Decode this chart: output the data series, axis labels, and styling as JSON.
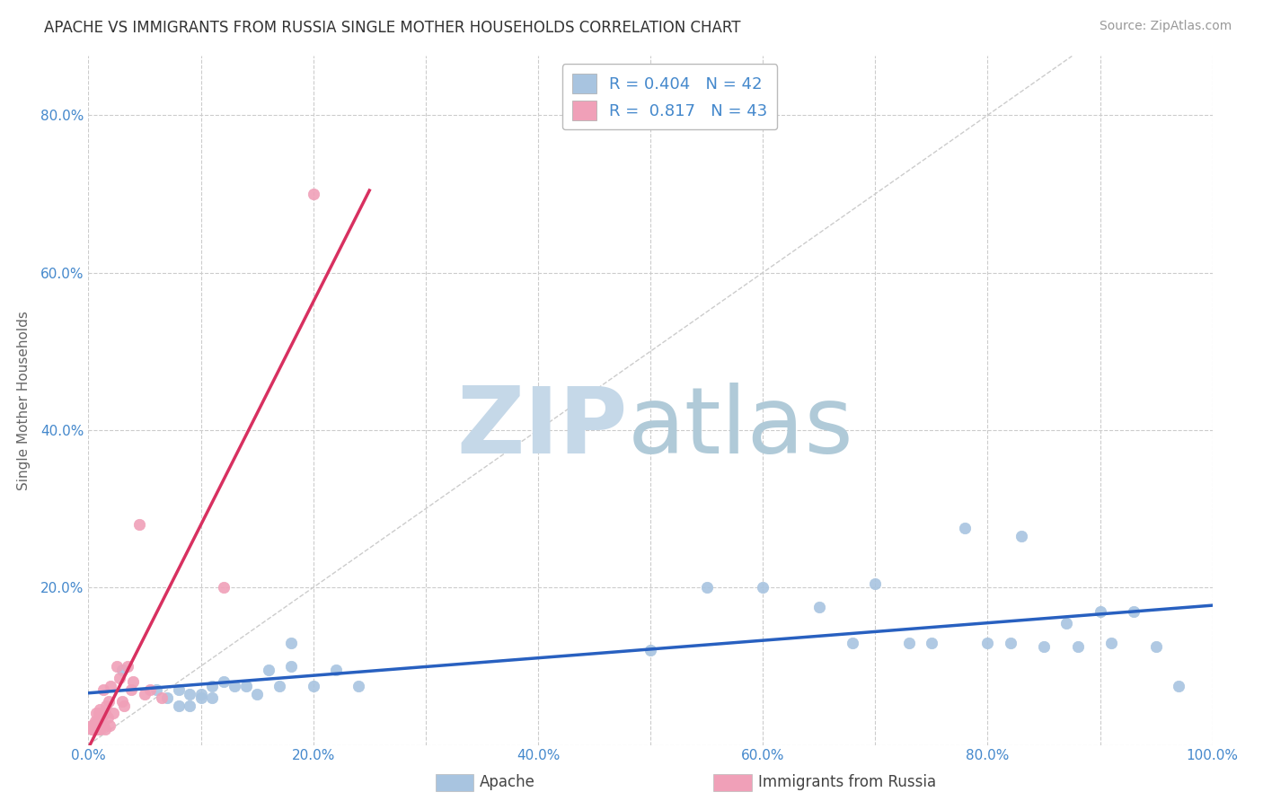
{
  "title": "APACHE VS IMMIGRANTS FROM RUSSIA SINGLE MOTHER HOUSEHOLDS CORRELATION CHART",
  "source": "Source: ZipAtlas.com",
  "ylabel": "Single Mother Households",
  "xlim": [
    0,
    1.0
  ],
  "ylim": [
    0,
    0.875
  ],
  "xticks": [
    0.0,
    0.2,
    0.4,
    0.6,
    0.8,
    1.0
  ],
  "yticks": [
    0.0,
    0.2,
    0.4,
    0.6,
    0.8
  ],
  "ytick_labels": [
    "",
    "20.0%",
    "40.0%",
    "60.0%",
    "80.0%"
  ],
  "xtick_labels": [
    "0.0%",
    "",
    "20.0%",
    "",
    "40.0%",
    "",
    "60.0%",
    "",
    "80.0%",
    "",
    "100.0%"
  ],
  "apache_R": 0.404,
  "apache_N": 42,
  "russia_R": 0.817,
  "russia_N": 43,
  "apache_color": "#a8c4e0",
  "russia_color": "#f0a0b8",
  "apache_line_color": "#2860c0",
  "russia_line_color": "#d83060",
  "legend_label_1": "Apache",
  "legend_label_2": "Immigrants from Russia",
  "apache_x": [
    0.03,
    0.06,
    0.07,
    0.08,
    0.08,
    0.09,
    0.09,
    0.1,
    0.1,
    0.11,
    0.11,
    0.12,
    0.13,
    0.14,
    0.15,
    0.16,
    0.17,
    0.18,
    0.18,
    0.2,
    0.22,
    0.24,
    0.5,
    0.55,
    0.6,
    0.65,
    0.68,
    0.7,
    0.73,
    0.75,
    0.78,
    0.8,
    0.82,
    0.83,
    0.85,
    0.87,
    0.88,
    0.9,
    0.91,
    0.93,
    0.95,
    0.97
  ],
  "apache_y": [
    0.095,
    0.07,
    0.06,
    0.05,
    0.07,
    0.05,
    0.065,
    0.06,
    0.065,
    0.06,
    0.075,
    0.08,
    0.075,
    0.075,
    0.065,
    0.095,
    0.075,
    0.13,
    0.1,
    0.075,
    0.095,
    0.075,
    0.12,
    0.2,
    0.2,
    0.175,
    0.13,
    0.205,
    0.13,
    0.13,
    0.275,
    0.13,
    0.13,
    0.265,
    0.125,
    0.155,
    0.125,
    0.17,
    0.13,
    0.17,
    0.125,
    0.075
  ],
  "russia_x": [
    0.003,
    0.003,
    0.004,
    0.004,
    0.005,
    0.005,
    0.006,
    0.006,
    0.007,
    0.007,
    0.007,
    0.008,
    0.008,
    0.009,
    0.009,
    0.01,
    0.01,
    0.01,
    0.012,
    0.012,
    0.013,
    0.013,
    0.015,
    0.015,
    0.016,
    0.017,
    0.018,
    0.019,
    0.02,
    0.022,
    0.025,
    0.028,
    0.03,
    0.032,
    0.035,
    0.038,
    0.04,
    0.045,
    0.05,
    0.055,
    0.065,
    0.12,
    0.2
  ],
  "russia_y": [
    0.02,
    0.025,
    0.02,
    0.025,
    0.02,
    0.025,
    0.02,
    0.03,
    0.02,
    0.025,
    0.04,
    0.02,
    0.03,
    0.02,
    0.04,
    0.02,
    0.03,
    0.045,
    0.025,
    0.035,
    0.025,
    0.07,
    0.02,
    0.04,
    0.05,
    0.035,
    0.055,
    0.025,
    0.075,
    0.04,
    0.1,
    0.085,
    0.055,
    0.05,
    0.1,
    0.07,
    0.08,
    0.28,
    0.065,
    0.07,
    0.06,
    0.2,
    0.7
  ],
  "background_color": "#ffffff"
}
